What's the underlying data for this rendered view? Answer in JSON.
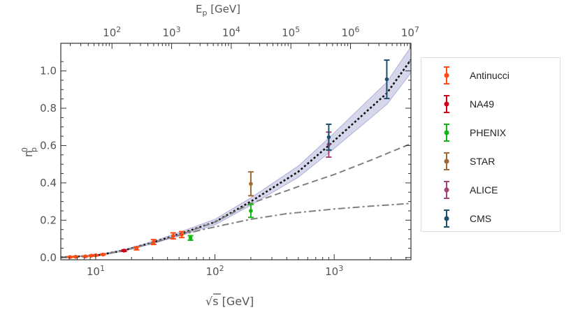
{
  "chart_data": {
    "type": "scatter",
    "title": "",
    "xlabel": "√s [GeV]",
    "xlabel_sqrt": "s",
    "xlabel_unit": "[GeV]",
    "ylabel_base": "n",
    "ylabel_sub": "p",
    "ylabel_sup": "0",
    "top_xlabel_base": "E",
    "top_xlabel_sub": "p",
    "top_xlabel_unit": "[GeV]",
    "x_scale": "log",
    "xlim": [
      5.1,
      4400
    ],
    "ylim": [
      -0.012,
      1.148
    ],
    "x_ticks": [
      {
        "value": 10,
        "label": "10",
        "exp": "1"
      },
      {
        "value": 100,
        "label": "10",
        "exp": "2"
      },
      {
        "value": 1000,
        "label": "10",
        "exp": "3"
      }
    ],
    "y_ticks": [
      "0.0",
      "0.2",
      "0.4",
      "0.6",
      "0.8",
      "1.0"
    ],
    "top_ticks": [
      {
        "value": 100,
        "label": "10",
        "exp": "2"
      },
      {
        "value": 1000,
        "label": "10",
        "exp": "3"
      },
      {
        "value": 10000,
        "label": "10",
        "exp": "4"
      },
      {
        "value": 100000,
        "label": "10",
        "exp": "5"
      },
      {
        "value": 1000000,
        "label": "10",
        "exp": "6"
      },
      {
        "value": 10000000,
        "label": "10",
        "exp": "7"
      }
    ],
    "grid": false,
    "legend_position": "right",
    "series": [
      {
        "name": "Antinucci",
        "color": "#ff4a12",
        "points": [
          {
            "x": 6.1,
            "y": 0.003,
            "err": 0.002
          },
          {
            "x": 6.8,
            "y": 0.004,
            "err": 0.002
          },
          {
            "x": 8.2,
            "y": 0.006,
            "err": 0.002
          },
          {
            "x": 9.2,
            "y": 0.01,
            "err": 0.003
          },
          {
            "x": 10.0,
            "y": 0.012,
            "err": 0.003
          },
          {
            "x": 11.5,
            "y": 0.016,
            "err": 0.003
          },
          {
            "x": 22,
            "y": 0.049,
            "err": 0.008
          },
          {
            "x": 30.6,
            "y": 0.083,
            "err": 0.013
          },
          {
            "x": 44.7,
            "y": 0.116,
            "err": 0.016
          },
          {
            "x": 52.7,
            "y": 0.123,
            "err": 0.016
          }
        ]
      },
      {
        "name": "NA49",
        "color": "#d0001a",
        "points": [
          {
            "x": 17.3,
            "y": 0.037,
            "err": 0.004
          }
        ]
      },
      {
        "name": "PHENIX",
        "color": "#14b414",
        "points": [
          {
            "x": 62.4,
            "y": 0.105,
            "err": 0.012
          },
          {
            "x": 200,
            "y": 0.25,
            "err": 0.035
          }
        ]
      },
      {
        "name": "STAR",
        "color": "#a06a35",
        "points": [
          {
            "x": 200,
            "y": 0.395,
            "err": 0.064
          }
        ]
      },
      {
        "name": "ALICE",
        "color": "#a4447a",
        "points": [
          {
            "x": 900,
            "y": 0.605,
            "err": 0.067
          }
        ]
      },
      {
        "name": "CMS",
        "color": "#1f4f6b",
        "points": [
          {
            "x": 900,
            "y": 0.645,
            "err": 0.069
          },
          {
            "x": 2760,
            "y": 0.955,
            "err": 0.103
          }
        ]
      }
    ],
    "curves": [
      {
        "style": "band",
        "color": "#8c8cc8",
        "x": [
          5.1,
          10,
          17,
          30,
          50,
          100,
          200,
          500,
          900,
          2760,
          4400
        ],
        "y_low": [
          0.0,
          0.008,
          0.033,
          0.074,
          0.115,
          0.175,
          0.28,
          0.43,
          0.56,
          0.82,
          0.99
        ],
        "y_high": [
          0.003,
          0.013,
          0.041,
          0.086,
          0.135,
          0.205,
          0.32,
          0.49,
          0.64,
          0.94,
          1.13
        ]
      },
      {
        "style": "dotted",
        "color": "#111111",
        "x": [
          5.1,
          10,
          17,
          30,
          50,
          100,
          200,
          500,
          900,
          2760,
          4400
        ],
        "y": [
          0.001,
          0.01,
          0.037,
          0.08,
          0.125,
          0.19,
          0.3,
          0.46,
          0.6,
          0.88,
          1.06
        ]
      },
      {
        "style": "dashed",
        "color": "#808080",
        "x": [
          5.1,
          10,
          17,
          30,
          50,
          100,
          200,
          500,
          1000,
          2000,
          4400
        ],
        "y": [
          0.001,
          0.01,
          0.036,
          0.078,
          0.12,
          0.19,
          0.29,
          0.38,
          0.445,
          0.52,
          0.61
        ]
      },
      {
        "style": "dashdot",
        "color": "#808080",
        "x": [
          50,
          80,
          120,
          200,
          400,
          1000,
          2000,
          4400
        ],
        "y": [
          0.12,
          0.15,
          0.175,
          0.205,
          0.235,
          0.26,
          0.275,
          0.29
        ]
      }
    ]
  }
}
